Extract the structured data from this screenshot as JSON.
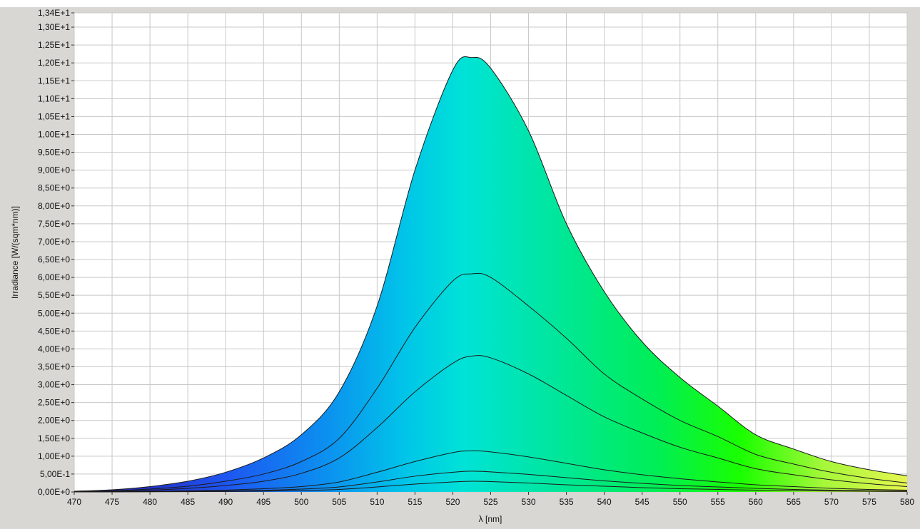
{
  "page": {
    "top_title_fragment": ""
  },
  "chart_data": {
    "type": "area",
    "xlabel": "λ [nm]",
    "ylabel": "Irradiance [W/(sqm*nm)]",
    "xlim": [
      470,
      580
    ],
    "ylim": [
      0,
      13.4
    ],
    "x_ticks": [
      "470",
      "475",
      "480",
      "485",
      "490",
      "495",
      "500",
      "505",
      "510",
      "515",
      "520",
      "525",
      "530",
      "535",
      "540",
      "545",
      "550",
      "555",
      "560",
      "565",
      "570",
      "575",
      "580"
    ],
    "y_ticks": [
      "0,00E+0",
      "5,00E-1",
      "1,00E+0",
      "1,50E+0",
      "2,00E+0",
      "2,50E+0",
      "3,00E+0",
      "3,50E+0",
      "4,00E+0",
      "4,50E+0",
      "5,00E+0",
      "5,50E+0",
      "6,00E+0",
      "6,50E+0",
      "7,00E+0",
      "7,50E+0",
      "8,00E+0",
      "8,50E+0",
      "9,00E+0",
      "9,50E+0",
      "1,00E+1",
      "1,05E+1",
      "1,10E+1",
      "1,15E+1",
      "1,20E+1",
      "1,25E+1",
      "1,30E+1",
      "1,34E+1"
    ],
    "y_tick_values": [
      0,
      0.5,
      1,
      1.5,
      2,
      2.5,
      3,
      3.5,
      4,
      4.5,
      5,
      5.5,
      6,
      6.5,
      7,
      7.5,
      8,
      8.5,
      9,
      9.5,
      10,
      10.5,
      11,
      11.5,
      12,
      12.5,
      13,
      13.4
    ],
    "grid": true,
    "fill": "spectral-color gradient",
    "x": [
      470,
      475,
      480,
      485,
      490,
      495,
      500,
      505,
      510,
      515,
      520,
      522.5,
      525,
      530,
      535,
      540,
      545,
      550,
      555,
      560,
      565,
      570,
      575,
      580
    ],
    "series": [
      {
        "values": [
          0.02,
          0.06,
          0.15,
          0.3,
          0.55,
          0.95,
          1.6,
          2.8,
          5.2,
          9.0,
          11.8,
          12.15,
          11.85,
          10.1,
          7.5,
          5.6,
          4.2,
          3.2,
          2.4,
          1.6,
          1.2,
          0.85,
          0.62,
          0.45
        ]
      },
      {
        "values": [
          0.01,
          0.03,
          0.08,
          0.16,
          0.3,
          0.5,
          0.85,
          1.5,
          2.9,
          4.6,
          5.9,
          6.1,
          6.0,
          5.2,
          4.3,
          3.3,
          2.6,
          2.0,
          1.55,
          1.05,
          0.78,
          0.55,
          0.38,
          0.25
        ]
      },
      {
        "values": [
          0.005,
          0.02,
          0.05,
          0.1,
          0.18,
          0.3,
          0.52,
          0.95,
          1.8,
          2.8,
          3.6,
          3.8,
          3.75,
          3.3,
          2.7,
          2.1,
          1.65,
          1.25,
          0.95,
          0.65,
          0.48,
          0.34,
          0.23,
          0.15
        ]
      },
      {
        "values": [
          0.002,
          0.006,
          0.015,
          0.03,
          0.05,
          0.09,
          0.15,
          0.28,
          0.55,
          0.85,
          1.1,
          1.15,
          1.12,
          0.98,
          0.8,
          0.62,
          0.48,
          0.37,
          0.28,
          0.2,
          0.15,
          0.1,
          0.07,
          0.05
        ]
      },
      {
        "values": [
          0.001,
          0.003,
          0.008,
          0.015,
          0.025,
          0.045,
          0.08,
          0.14,
          0.28,
          0.44,
          0.55,
          0.58,
          0.56,
          0.49,
          0.4,
          0.31,
          0.24,
          0.18,
          0.14,
          0.1,
          0.07,
          0.05,
          0.035,
          0.025
        ]
      },
      {
        "values": [
          0.0005,
          0.0015,
          0.004,
          0.008,
          0.013,
          0.023,
          0.04,
          0.07,
          0.14,
          0.22,
          0.28,
          0.3,
          0.29,
          0.25,
          0.2,
          0.16,
          0.12,
          0.09,
          0.07,
          0.05,
          0.035,
          0.025,
          0.018,
          0.012
        ]
      }
    ]
  }
}
